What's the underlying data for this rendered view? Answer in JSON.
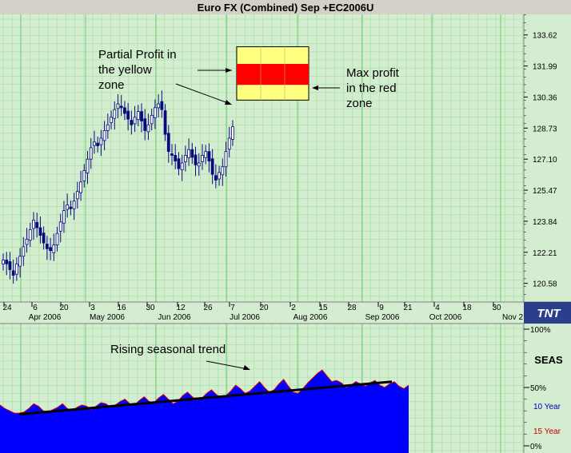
{
  "title": "Euro FX (Combined) Sep +EC2006U",
  "logo_text": "TNT",
  "colors": {
    "background": "#d4ecd0",
    "grid": "#9be39b",
    "candle": "#0a0a80",
    "seasonal_fill": "#0000ff",
    "seasonal_edge": "#e00000",
    "yellow_zone": "#ffff80",
    "red_zone": "#ff0000",
    "trend_line": "#000000",
    "label_10yr": "#0000c0",
    "label_15yr": "#c00000"
  },
  "annotations": {
    "partial_profit": [
      "Partial Profit in",
      "the yellow",
      "zone"
    ],
    "max_profit": [
      "Max profit",
      "in the red",
      "zone"
    ],
    "seasonal_trend": "Rising seasonal trend"
  },
  "lower_panel": {
    "label": "SEAS",
    "ticks": [
      "100%",
      "50%",
      "0%"
    ],
    "legend_10": "10 Year",
    "legend_15": "15 Year"
  },
  "chart_data": [
    {
      "type": "candlestick",
      "title": "Euro FX (Combined) Sep +EC2006U",
      "y_ticks": [
        120.58,
        122.21,
        123.84,
        125.47,
        127.1,
        128.73,
        130.36,
        131.99,
        133.62
      ],
      "y_tick_labels": [
        "120.58",
        "122.21",
        "123.84",
        "125.47",
        "127.10",
        "128.73",
        "130.36",
        "131.99",
        "133.62"
      ],
      "ylim": [
        119.6,
        134.7
      ],
      "x_day_labels": [
        "24",
        "6",
        "20",
        "3",
        "16",
        "30",
        "12",
        "26",
        "7",
        "20",
        "2",
        "15",
        "28",
        "9",
        "21",
        "4",
        "18",
        "30"
      ],
      "x_month_labels": [
        "Apr 2006",
        "May 2006",
        "Jun 2006",
        "Jul 2006",
        "Aug 2006",
        "Sep 2006",
        "Oct 2006",
        "Nov 2"
      ],
      "yellow_zone": [
        130.2,
        133.0
      ],
      "red_zone": [
        131.0,
        132.1
      ],
      "closes": [
        121.8,
        121.6,
        121.3,
        121.0,
        121.6,
        122.0,
        122.5,
        122.9,
        123.4,
        123.9,
        123.5,
        123.1,
        122.7,
        122.4,
        122.3,
        122.6,
        123.2,
        123.8,
        124.4,
        124.7,
        124.5,
        124.9,
        125.4,
        125.9,
        126.5,
        127.1,
        127.7,
        128.0,
        127.8,
        128.2,
        128.6,
        128.9,
        129.3,
        129.7,
        130.0,
        129.8,
        129.5,
        129.2,
        128.9,
        129.3,
        129.6,
        129.1,
        128.6,
        128.9,
        129.4,
        129.8,
        130.0,
        129.7,
        128.4,
        127.5,
        127.3,
        127.0,
        126.6,
        126.9,
        127.3,
        127.6,
        127.2,
        126.8,
        126.9,
        127.3,
        127.5,
        127.0,
        126.3,
        126.0,
        126.4,
        126.7,
        127.5,
        128.2,
        128.8
      ]
    },
    {
      "type": "area",
      "title": "SEAS",
      "ylim": [
        0,
        100
      ],
      "trend_line": [
        27,
        55
      ],
      "values": [
        35,
        32,
        30,
        28,
        28,
        29,
        32,
        36,
        34,
        30,
        29,
        31,
        33,
        36,
        32,
        30,
        33,
        35,
        34,
        31,
        34,
        37,
        36,
        33,
        35,
        38,
        40,
        36,
        35,
        39,
        42,
        38,
        37,
        41,
        44,
        40,
        36,
        38,
        43,
        46,
        42,
        39,
        41,
        45,
        48,
        44,
        41,
        43,
        47,
        52,
        49,
        45,
        47,
        51,
        55,
        50,
        46,
        48,
        53,
        57,
        51,
        46,
        45,
        49,
        54,
        58,
        62,
        65,
        60,
        55,
        56,
        54,
        50,
        52,
        55,
        53,
        51,
        54,
        56,
        52,
        50,
        53,
        55,
        51,
        49,
        52
      ]
    }
  ]
}
